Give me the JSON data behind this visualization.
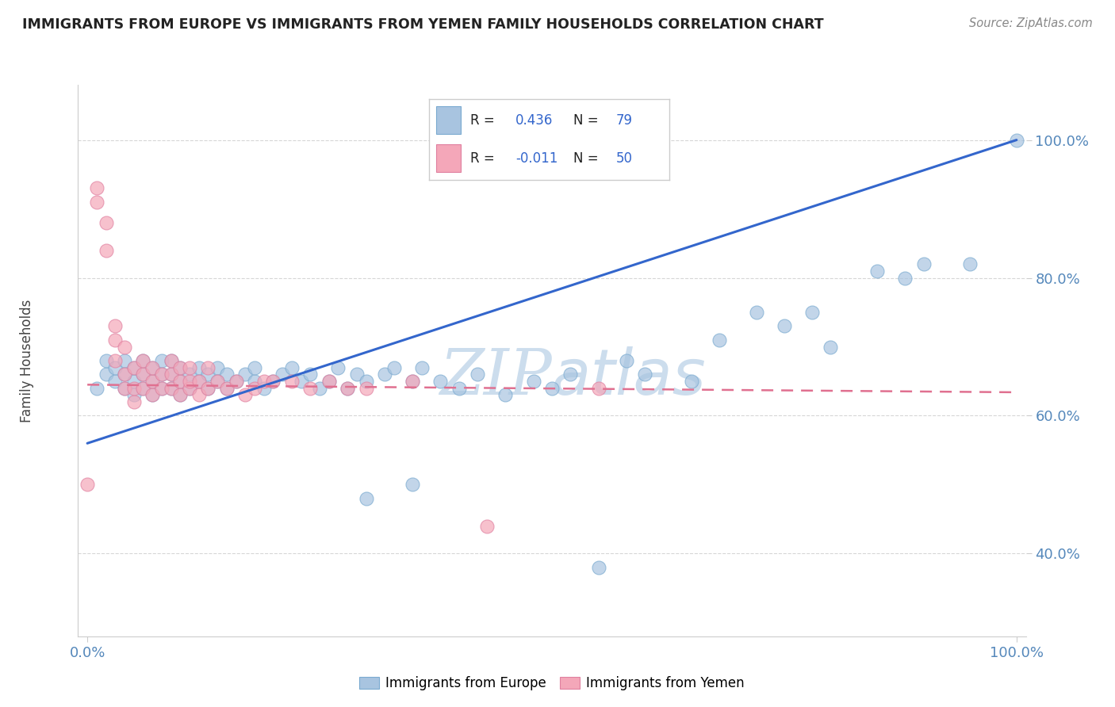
{
  "title": "IMMIGRANTS FROM EUROPE VS IMMIGRANTS FROM YEMEN FAMILY HOUSEHOLDS CORRELATION CHART",
  "source": "Source: ZipAtlas.com",
  "ylabel": "Family Households",
  "europe_R": 0.436,
  "europe_N": 79,
  "yemen_R": -0.011,
  "yemen_N": 50,
  "europe_color": "#a8c4e0",
  "europe_edge_color": "#7aaad0",
  "yemen_color": "#f4a7b9",
  "yemen_edge_color": "#e080a0",
  "europe_line_color": "#3366cc",
  "yemen_line_color": "#e07090",
  "grid_color": "#cccccc",
  "watermark_color": "#ccdded",
  "title_color": "#222222",
  "source_color": "#888888",
  "tick_color": "#5588bb",
  "ylabel_color": "#444444",
  "legend_text_color": "#222222",
  "legend_value_color": "#3366cc",
  "legend_border_color": "#cccccc",
  "europe_legend_fill": "#a8c4e0",
  "europe_legend_edge": "#7aaad0",
  "yemen_legend_fill": "#f4a7b9",
  "yemen_legend_edge": "#e080a0",
  "xlim": [
    -0.01,
    1.01
  ],
  "ylim": [
    0.28,
    1.08
  ],
  "ytick_vals": [
    0.4,
    0.6,
    0.8,
    1.0
  ],
  "ytick_labels": [
    "40.0%",
    "60.0%",
    "80.0%",
    "100.0%"
  ],
  "xtick_vals": [
    0.0,
    1.0
  ],
  "xtick_labels": [
    "0.0%",
    "100.0%"
  ],
  "europe_line_x0": 0.0,
  "europe_line_y0": 0.56,
  "europe_line_x1": 1.0,
  "europe_line_y1": 1.0,
  "yemen_line_x0": 0.0,
  "yemen_line_y0": 0.645,
  "yemen_line_x1": 1.0,
  "yemen_line_y1": 0.634,
  "europe_x": [
    0.01,
    0.02,
    0.02,
    0.03,
    0.03,
    0.04,
    0.04,
    0.04,
    0.05,
    0.05,
    0.05,
    0.06,
    0.06,
    0.06,
    0.07,
    0.07,
    0.07,
    0.08,
    0.08,
    0.08,
    0.09,
    0.09,
    0.09,
    0.1,
    0.1,
    0.1,
    0.11,
    0.11,
    0.12,
    0.12,
    0.13,
    0.13,
    0.14,
    0.14,
    0.15,
    0.15,
    0.16,
    0.17,
    0.18,
    0.18,
    0.19,
    0.2,
    0.21,
    0.22,
    0.23,
    0.24,
    0.25,
    0.26,
    0.27,
    0.28,
    0.29,
    0.3,
    0.32,
    0.33,
    0.35,
    0.36,
    0.38,
    0.4,
    0.42,
    0.45,
    0.48,
    0.5,
    0.52,
    0.3,
    0.35,
    0.55,
    0.58,
    0.6,
    0.65,
    0.68,
    0.72,
    0.75,
    0.78,
    0.8,
    0.85,
    0.88,
    0.9,
    0.95,
    1.0
  ],
  "europe_y": [
    0.64,
    0.66,
    0.68,
    0.65,
    0.67,
    0.64,
    0.66,
    0.68,
    0.63,
    0.65,
    0.67,
    0.64,
    0.66,
    0.68,
    0.63,
    0.65,
    0.67,
    0.64,
    0.66,
    0.68,
    0.64,
    0.66,
    0.68,
    0.63,
    0.65,
    0.67,
    0.64,
    0.66,
    0.65,
    0.67,
    0.64,
    0.66,
    0.65,
    0.67,
    0.64,
    0.66,
    0.65,
    0.66,
    0.65,
    0.67,
    0.64,
    0.65,
    0.66,
    0.67,
    0.65,
    0.66,
    0.64,
    0.65,
    0.67,
    0.64,
    0.66,
    0.65,
    0.66,
    0.67,
    0.65,
    0.67,
    0.65,
    0.64,
    0.66,
    0.63,
    0.65,
    0.64,
    0.66,
    0.48,
    0.5,
    0.38,
    0.68,
    0.66,
    0.65,
    0.71,
    0.75,
    0.73,
    0.75,
    0.7,
    0.81,
    0.8,
    0.82,
    0.82,
    1.0
  ],
  "yemen_x": [
    0.0,
    0.01,
    0.01,
    0.02,
    0.02,
    0.03,
    0.03,
    0.03,
    0.04,
    0.04,
    0.04,
    0.05,
    0.05,
    0.05,
    0.06,
    0.06,
    0.06,
    0.07,
    0.07,
    0.07,
    0.08,
    0.08,
    0.09,
    0.09,
    0.09,
    0.1,
    0.1,
    0.1,
    0.11,
    0.11,
    0.11,
    0.12,
    0.12,
    0.13,
    0.13,
    0.14,
    0.15,
    0.16,
    0.17,
    0.18,
    0.19,
    0.2,
    0.22,
    0.24,
    0.26,
    0.28,
    0.3,
    0.35,
    0.55,
    0.43
  ],
  "yemen_y": [
    0.5,
    0.91,
    0.93,
    0.84,
    0.88,
    0.71,
    0.73,
    0.68,
    0.64,
    0.66,
    0.7,
    0.62,
    0.64,
    0.67,
    0.64,
    0.66,
    0.68,
    0.63,
    0.65,
    0.67,
    0.64,
    0.66,
    0.64,
    0.66,
    0.68,
    0.63,
    0.65,
    0.67,
    0.64,
    0.65,
    0.67,
    0.63,
    0.65,
    0.64,
    0.67,
    0.65,
    0.64,
    0.65,
    0.63,
    0.64,
    0.65,
    0.65,
    0.65,
    0.64,
    0.65,
    0.64,
    0.64,
    0.65,
    0.64,
    0.44
  ]
}
